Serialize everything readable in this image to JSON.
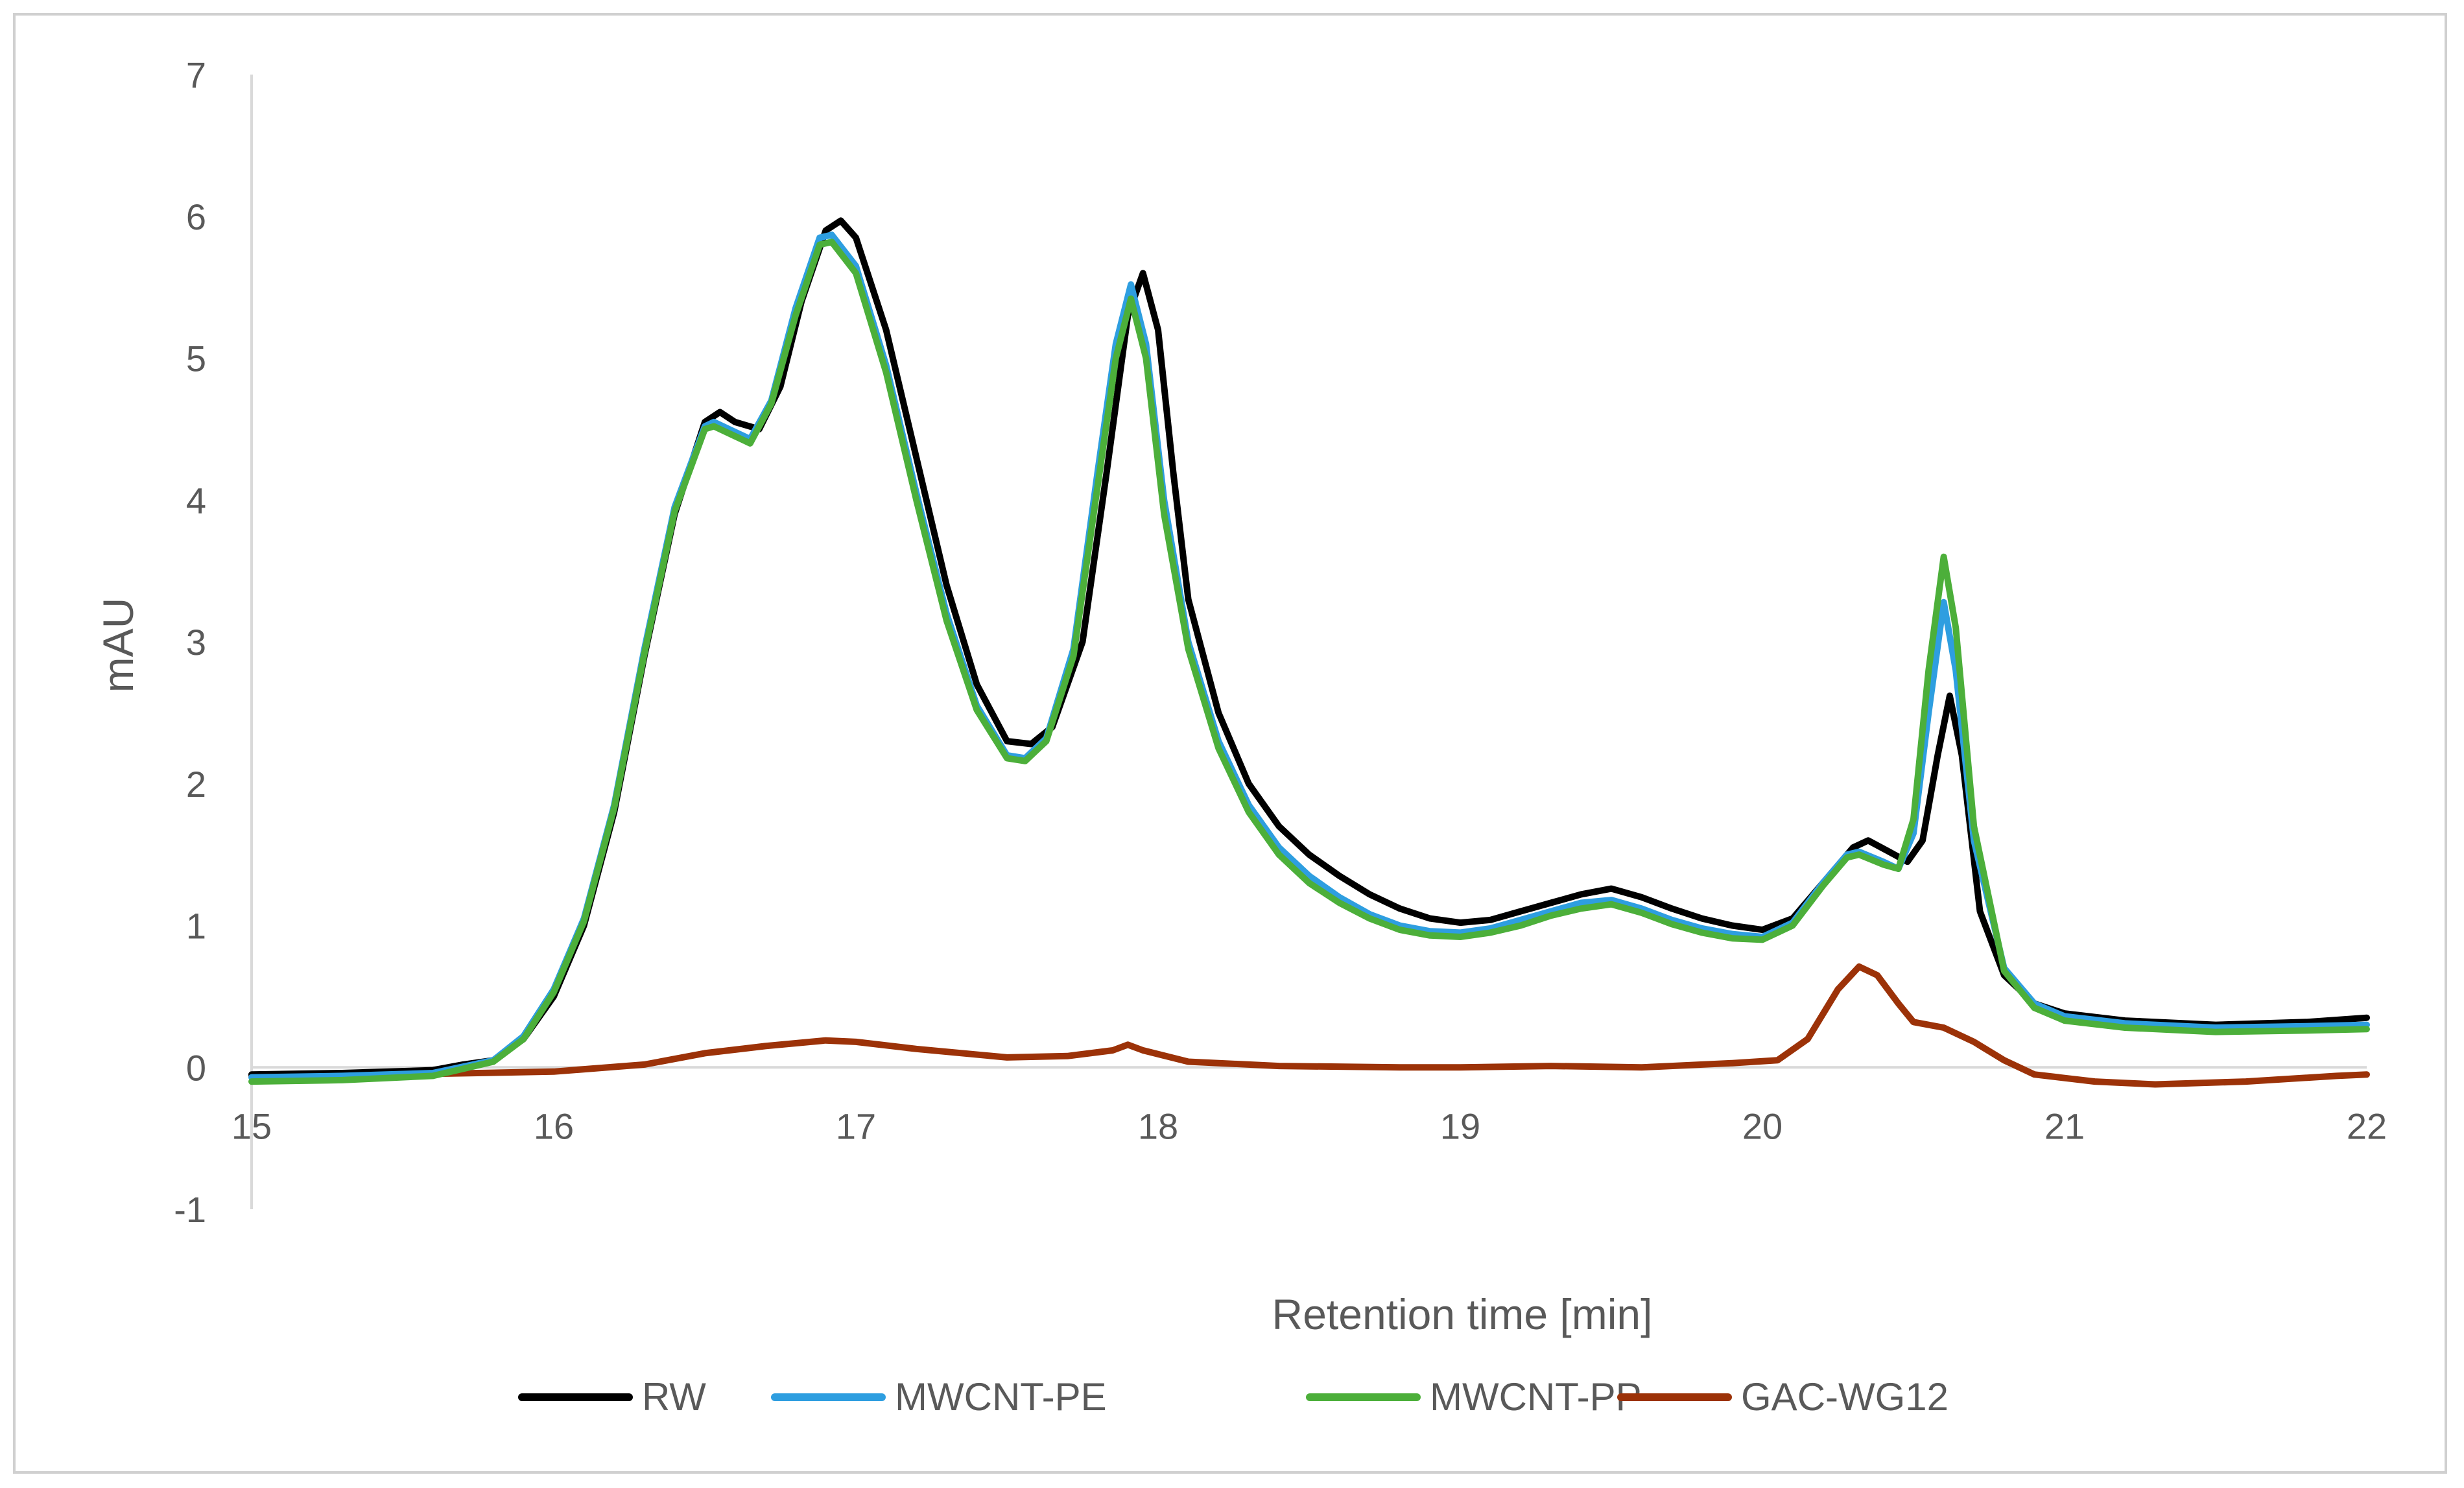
{
  "chart_data": {
    "type": "line",
    "title": "",
    "xlabel": "Retention time [min]",
    "ylabel": "mAU",
    "xlim": [
      15,
      22
    ],
    "ylim": [
      -1,
      7
    ],
    "x_ticks": [
      15,
      16,
      17,
      18,
      19,
      20,
      21,
      22
    ],
    "y_ticks": [
      -1,
      0,
      1,
      2,
      3,
      4,
      5,
      6,
      7
    ],
    "grid": false,
    "legend_position": "bottom",
    "series": [
      {
        "name": "RW",
        "color": "#000000",
        "points": [
          [
            15.0,
            -0.05
          ],
          [
            15.3,
            -0.04
          ],
          [
            15.6,
            -0.02
          ],
          [
            15.7,
            0.02
          ],
          [
            15.8,
            0.05
          ],
          [
            15.9,
            0.2
          ],
          [
            16.0,
            0.5
          ],
          [
            16.1,
            1.0
          ],
          [
            16.2,
            1.8
          ],
          [
            16.3,
            2.9
          ],
          [
            16.4,
            3.9
          ],
          [
            16.5,
            4.55
          ],
          [
            16.55,
            4.62
          ],
          [
            16.6,
            4.55
          ],
          [
            16.68,
            4.5
          ],
          [
            16.75,
            4.8
          ],
          [
            16.82,
            5.4
          ],
          [
            16.9,
            5.9
          ],
          [
            16.95,
            5.97
          ],
          [
            17.0,
            5.85
          ],
          [
            17.1,
            5.2
          ],
          [
            17.2,
            4.3
          ],
          [
            17.3,
            3.4
          ],
          [
            17.4,
            2.7
          ],
          [
            17.5,
            2.3
          ],
          [
            17.58,
            2.28
          ],
          [
            17.65,
            2.4
          ],
          [
            17.75,
            3.0
          ],
          [
            17.83,
            4.2
          ],
          [
            17.9,
            5.3
          ],
          [
            17.95,
            5.6
          ],
          [
            18.0,
            5.2
          ],
          [
            18.05,
            4.2
          ],
          [
            18.1,
            3.3
          ],
          [
            18.2,
            2.5
          ],
          [
            18.3,
            2.0
          ],
          [
            18.4,
            1.7
          ],
          [
            18.5,
            1.5
          ],
          [
            18.6,
            1.35
          ],
          [
            18.7,
            1.22
          ],
          [
            18.8,
            1.12
          ],
          [
            18.9,
            1.05
          ],
          [
            19.0,
            1.02
          ],
          [
            19.1,
            1.04
          ],
          [
            19.2,
            1.1
          ],
          [
            19.3,
            1.16
          ],
          [
            19.4,
            1.22
          ],
          [
            19.5,
            1.26
          ],
          [
            19.6,
            1.2
          ],
          [
            19.7,
            1.12
          ],
          [
            19.8,
            1.05
          ],
          [
            19.9,
            1.0
          ],
          [
            20.0,
            0.97
          ],
          [
            20.1,
            1.05
          ],
          [
            20.2,
            1.3
          ],
          [
            20.3,
            1.55
          ],
          [
            20.35,
            1.6
          ],
          [
            20.42,
            1.52
          ],
          [
            20.48,
            1.45
          ],
          [
            20.53,
            1.6
          ],
          [
            20.58,
            2.2
          ],
          [
            20.62,
            2.62
          ],
          [
            20.66,
            2.2
          ],
          [
            20.72,
            1.1
          ],
          [
            20.8,
            0.65
          ],
          [
            20.9,
            0.45
          ],
          [
            21.0,
            0.38
          ],
          [
            21.2,
            0.33
          ],
          [
            21.5,
            0.3
          ],
          [
            21.8,
            0.32
          ],
          [
            22.0,
            0.35
          ]
        ]
      },
      {
        "name": "MWCNT-PE",
        "color": "#2e9ee0",
        "points": [
          [
            15.0,
            -0.07
          ],
          [
            15.3,
            -0.06
          ],
          [
            15.6,
            -0.04
          ],
          [
            15.8,
            0.05
          ],
          [
            15.9,
            0.22
          ],
          [
            16.0,
            0.55
          ],
          [
            16.1,
            1.05
          ],
          [
            16.2,
            1.85
          ],
          [
            16.3,
            2.95
          ],
          [
            16.4,
            3.95
          ],
          [
            16.5,
            4.52
          ],
          [
            16.53,
            4.55
          ],
          [
            16.6,
            4.48
          ],
          [
            16.65,
            4.43
          ],
          [
            16.72,
            4.7
          ],
          [
            16.8,
            5.35
          ],
          [
            16.88,
            5.85
          ],
          [
            16.92,
            5.87
          ],
          [
            17.0,
            5.65
          ],
          [
            17.1,
            4.95
          ],
          [
            17.2,
            4.05
          ],
          [
            17.3,
            3.2
          ],
          [
            17.4,
            2.55
          ],
          [
            17.5,
            2.2
          ],
          [
            17.56,
            2.18
          ],
          [
            17.63,
            2.32
          ],
          [
            17.72,
            2.95
          ],
          [
            17.8,
            4.2
          ],
          [
            17.86,
            5.1
          ],
          [
            17.91,
            5.52
          ],
          [
            17.96,
            5.1
          ],
          [
            18.02,
            4.0
          ],
          [
            18.1,
            3.0
          ],
          [
            18.2,
            2.3
          ],
          [
            18.3,
            1.85
          ],
          [
            18.4,
            1.55
          ],
          [
            18.5,
            1.35
          ],
          [
            18.6,
            1.2
          ],
          [
            18.7,
            1.08
          ],
          [
            18.8,
            1.0
          ],
          [
            18.9,
            0.96
          ],
          [
            19.0,
            0.95
          ],
          [
            19.1,
            0.98
          ],
          [
            19.2,
            1.04
          ],
          [
            19.3,
            1.1
          ],
          [
            19.4,
            1.16
          ],
          [
            19.5,
            1.18
          ],
          [
            19.6,
            1.12
          ],
          [
            19.7,
            1.04
          ],
          [
            19.8,
            0.98
          ],
          [
            19.9,
            0.94
          ],
          [
            20.0,
            0.92
          ],
          [
            20.1,
            1.02
          ],
          [
            20.2,
            1.3
          ],
          [
            20.28,
            1.5
          ],
          [
            20.32,
            1.52
          ],
          [
            20.4,
            1.45
          ],
          [
            20.45,
            1.4
          ],
          [
            20.5,
            1.65
          ],
          [
            20.55,
            2.5
          ],
          [
            20.6,
            3.28
          ],
          [
            20.64,
            2.8
          ],
          [
            20.7,
            1.6
          ],
          [
            20.8,
            0.7
          ],
          [
            20.9,
            0.45
          ],
          [
            21.0,
            0.36
          ],
          [
            21.2,
            0.31
          ],
          [
            21.5,
            0.28
          ],
          [
            21.8,
            0.29
          ],
          [
            22.0,
            0.3
          ]
        ]
      },
      {
        "name": "MWCNT-PP",
        "color": "#4caf3a",
        "points": [
          [
            15.0,
            -0.1
          ],
          [
            15.3,
            -0.09
          ],
          [
            15.6,
            -0.06
          ],
          [
            15.8,
            0.04
          ],
          [
            15.9,
            0.2
          ],
          [
            16.0,
            0.53
          ],
          [
            16.1,
            1.03
          ],
          [
            16.2,
            1.83
          ],
          [
            16.3,
            2.92
          ],
          [
            16.4,
            3.92
          ],
          [
            16.5,
            4.5
          ],
          [
            16.53,
            4.52
          ],
          [
            16.6,
            4.45
          ],
          [
            16.65,
            4.4
          ],
          [
            16.72,
            4.68
          ],
          [
            16.8,
            5.3
          ],
          [
            16.88,
            5.8
          ],
          [
            16.92,
            5.82
          ],
          [
            17.0,
            5.6
          ],
          [
            17.1,
            4.9
          ],
          [
            17.2,
            4.0
          ],
          [
            17.3,
            3.15
          ],
          [
            17.4,
            2.52
          ],
          [
            17.5,
            2.18
          ],
          [
            17.56,
            2.16
          ],
          [
            17.63,
            2.3
          ],
          [
            17.72,
            2.9
          ],
          [
            17.8,
            4.1
          ],
          [
            17.86,
            5.0
          ],
          [
            17.91,
            5.42
          ],
          [
            17.96,
            5.0
          ],
          [
            18.02,
            3.9
          ],
          [
            18.1,
            2.95
          ],
          [
            18.2,
            2.25
          ],
          [
            18.3,
            1.8
          ],
          [
            18.4,
            1.5
          ],
          [
            18.5,
            1.3
          ],
          [
            18.6,
            1.16
          ],
          [
            18.7,
            1.05
          ],
          [
            18.8,
            0.97
          ],
          [
            18.9,
            0.93
          ],
          [
            19.0,
            0.92
          ],
          [
            19.1,
            0.95
          ],
          [
            19.2,
            1.0
          ],
          [
            19.3,
            1.07
          ],
          [
            19.4,
            1.12
          ],
          [
            19.5,
            1.15
          ],
          [
            19.6,
            1.09
          ],
          [
            19.7,
            1.01
          ],
          [
            19.8,
            0.95
          ],
          [
            19.9,
            0.91
          ],
          [
            20.0,
            0.9
          ],
          [
            20.1,
            1.0
          ],
          [
            20.2,
            1.28
          ],
          [
            20.28,
            1.48
          ],
          [
            20.32,
            1.5
          ],
          [
            20.4,
            1.43
          ],
          [
            20.45,
            1.4
          ],
          [
            20.5,
            1.75
          ],
          [
            20.55,
            2.8
          ],
          [
            20.6,
            3.6
          ],
          [
            20.64,
            3.1
          ],
          [
            20.7,
            1.7
          ],
          [
            20.8,
            0.68
          ],
          [
            20.9,
            0.42
          ],
          [
            21.0,
            0.33
          ],
          [
            21.2,
            0.28
          ],
          [
            21.5,
            0.25
          ],
          [
            21.8,
            0.26
          ],
          [
            22.0,
            0.27
          ]
        ]
      },
      {
        "name": "GAC-WG12",
        "color": "#9c3208",
        "points": [
          [
            15.0,
            -0.06
          ],
          [
            15.5,
            -0.05
          ],
          [
            16.0,
            -0.03
          ],
          [
            16.3,
            0.02
          ],
          [
            16.5,
            0.1
          ],
          [
            16.7,
            0.15
          ],
          [
            16.9,
            0.19
          ],
          [
            17.0,
            0.18
          ],
          [
            17.2,
            0.13
          ],
          [
            17.5,
            0.07
          ],
          [
            17.7,
            0.08
          ],
          [
            17.85,
            0.12
          ],
          [
            17.9,
            0.16
          ],
          [
            17.95,
            0.12
          ],
          [
            18.1,
            0.04
          ],
          [
            18.4,
            0.01
          ],
          [
            18.8,
            0.0
          ],
          [
            19.0,
            0.0
          ],
          [
            19.3,
            0.01
          ],
          [
            19.6,
            0.0
          ],
          [
            19.9,
            0.03
          ],
          [
            20.05,
            0.05
          ],
          [
            20.15,
            0.2
          ],
          [
            20.25,
            0.55
          ],
          [
            20.32,
            0.71
          ],
          [
            20.38,
            0.65
          ],
          [
            20.45,
            0.45
          ],
          [
            20.5,
            0.32
          ],
          [
            20.6,
            0.28
          ],
          [
            20.7,
            0.18
          ],
          [
            20.8,
            0.05
          ],
          [
            20.9,
            -0.05
          ],
          [
            21.1,
            -0.1
          ],
          [
            21.3,
            -0.12
          ],
          [
            21.6,
            -0.1
          ],
          [
            21.9,
            -0.06
          ],
          [
            22.0,
            -0.05
          ]
        ]
      }
    ]
  }
}
